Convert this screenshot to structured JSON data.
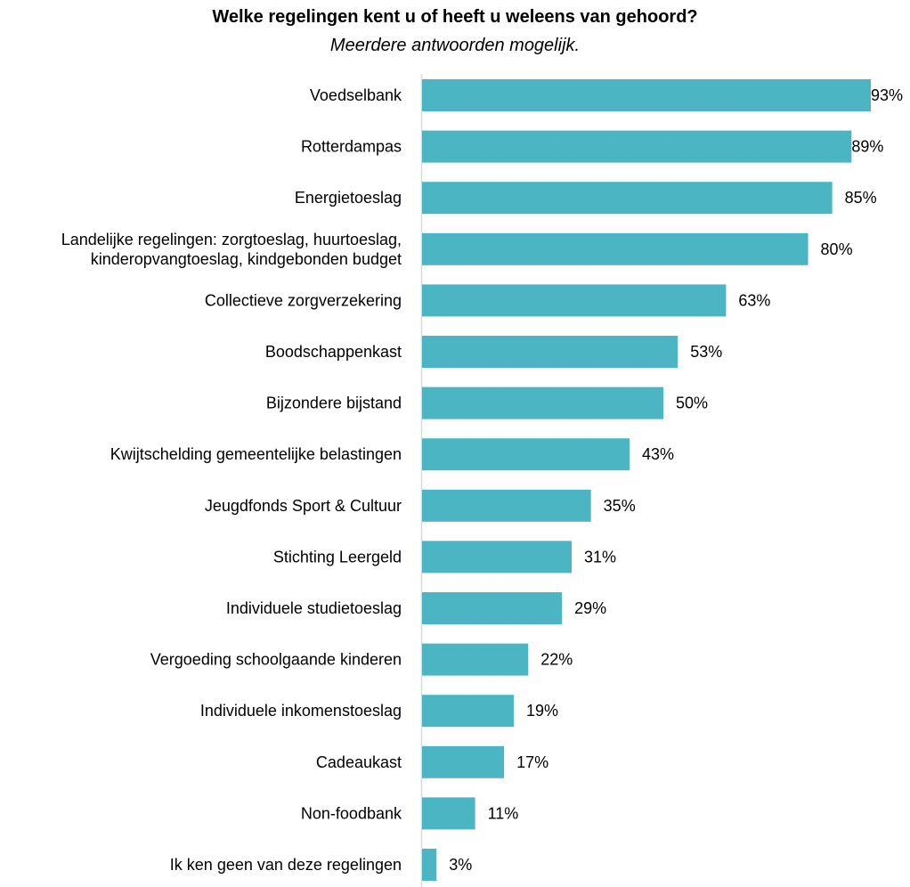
{
  "chart_data": {
    "type": "bar",
    "orientation": "horizontal",
    "title": "Welke regelingen kent u of heeft u weleens van gehoord?",
    "subtitle": "Meerdere antwoorden mogelijk.",
    "categories": [
      [
        "Voedselbank"
      ],
      [
        "Rotterdampas"
      ],
      [
        "Energietoeslag"
      ],
      [
        "Landelijke regelingen: zorgtoeslag, huurtoeslag,",
        "kinderopvangtoeslag, kindgebonden budget"
      ],
      [
        "Collectieve zorgverzekering"
      ],
      [
        "Boodschappenkast"
      ],
      [
        "Bijzondere bijstand"
      ],
      [
        "Kwijtschelding gemeentelijke belastingen"
      ],
      [
        "Jeugdfonds Sport & Cultuur"
      ],
      [
        "Stichting Leergeld"
      ],
      [
        "Individuele studietoeslag"
      ],
      [
        "Vergoeding schoolgaande kinderen"
      ],
      [
        "Individuele inkomenstoeslag"
      ],
      [
        "Cadeaukast"
      ],
      [
        "Non-foodbank"
      ],
      [
        "Ik ken geen van deze regelingen"
      ]
    ],
    "values": [
      93,
      89,
      85,
      80,
      63,
      53,
      50,
      43,
      35,
      31,
      29,
      22,
      19,
      17,
      11,
      3
    ],
    "value_labels": [
      "93%",
      "89%",
      "85%",
      "80%",
      "63%",
      "53%",
      "50%",
      "43%",
      "35%",
      "31%",
      "29%",
      "22%",
      "19%",
      "17%",
      "11%",
      "3%"
    ],
    "xlim": [
      0,
      93
    ],
    "grid": false,
    "bar_color": "#4BB5C4",
    "axis_color": "#D9D9D9"
  }
}
